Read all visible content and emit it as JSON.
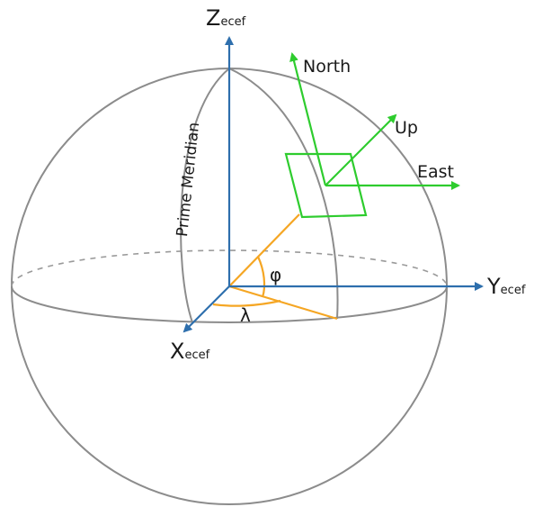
{
  "axes": {
    "z": {
      "main": "Z",
      "sub": "ecef"
    },
    "y": {
      "main": "Y",
      "sub": "ecef"
    },
    "x": {
      "main": "X",
      "sub": "ecef"
    }
  },
  "enu": {
    "north": "North",
    "up": "Up",
    "east": "East"
  },
  "meridian_label": "Prime Meridian",
  "angles": {
    "latitude": "φ",
    "longitude": "λ"
  },
  "colors": {
    "sphere": "#8c8c8c",
    "ecef_axes": "#2e6fad",
    "enu_frame": "#2ecc2e",
    "angle_lines": "#f5a623",
    "text": "#1a1a1a"
  }
}
